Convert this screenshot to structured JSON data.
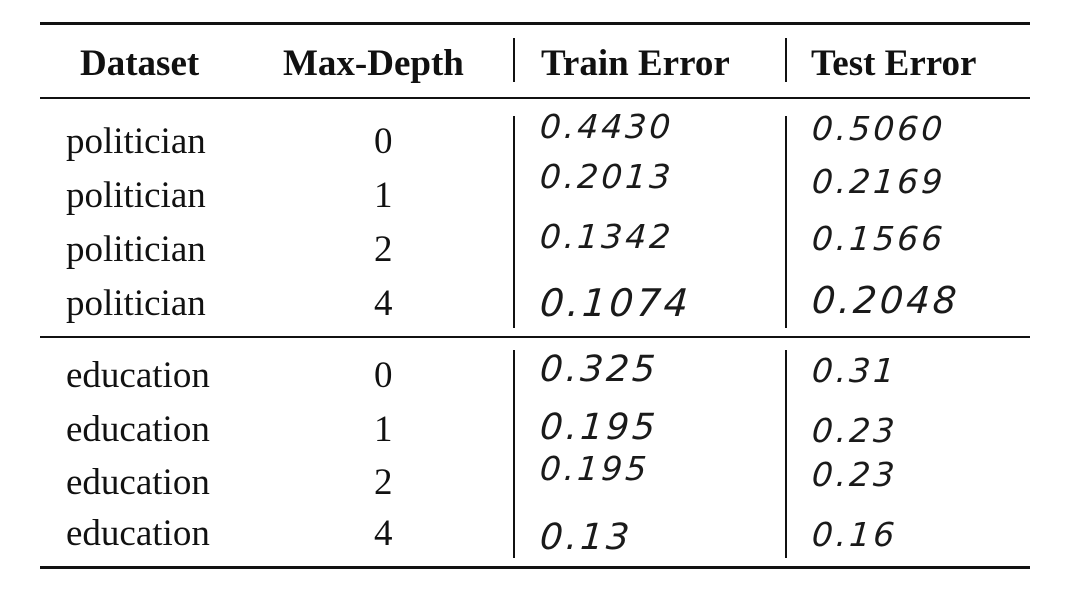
{
  "table": {
    "headers": {
      "dataset": "Dataset",
      "max_depth": "Max-Depth",
      "train_error": "Train Error",
      "test_error": "Test Error"
    },
    "rows": [
      {
        "dataset": "politician",
        "max_depth": "0",
        "train_error": "0.4430",
        "test_error": "0.5060"
      },
      {
        "dataset": "politician",
        "max_depth": "1",
        "train_error": "0.2013",
        "test_error": "0.2169"
      },
      {
        "dataset": "politician",
        "max_depth": "2",
        "train_error": "0.1342",
        "test_error": "0.1566"
      },
      {
        "dataset": "politician",
        "max_depth": "4",
        "train_error": "0.1074",
        "test_error": "0.2048"
      },
      {
        "dataset": "education",
        "max_depth": "0",
        "train_error": "0.325",
        "test_error": "0.31"
      },
      {
        "dataset": "education",
        "max_depth": "1",
        "train_error": "0.195",
        "test_error": "0.23"
      },
      {
        "dataset": "education",
        "max_depth": "2",
        "train_error": "0.195",
        "test_error": "0.23"
      },
      {
        "dataset": "education",
        "max_depth": "4",
        "train_error": "0.13",
        "test_error": "0.16"
      }
    ]
  }
}
